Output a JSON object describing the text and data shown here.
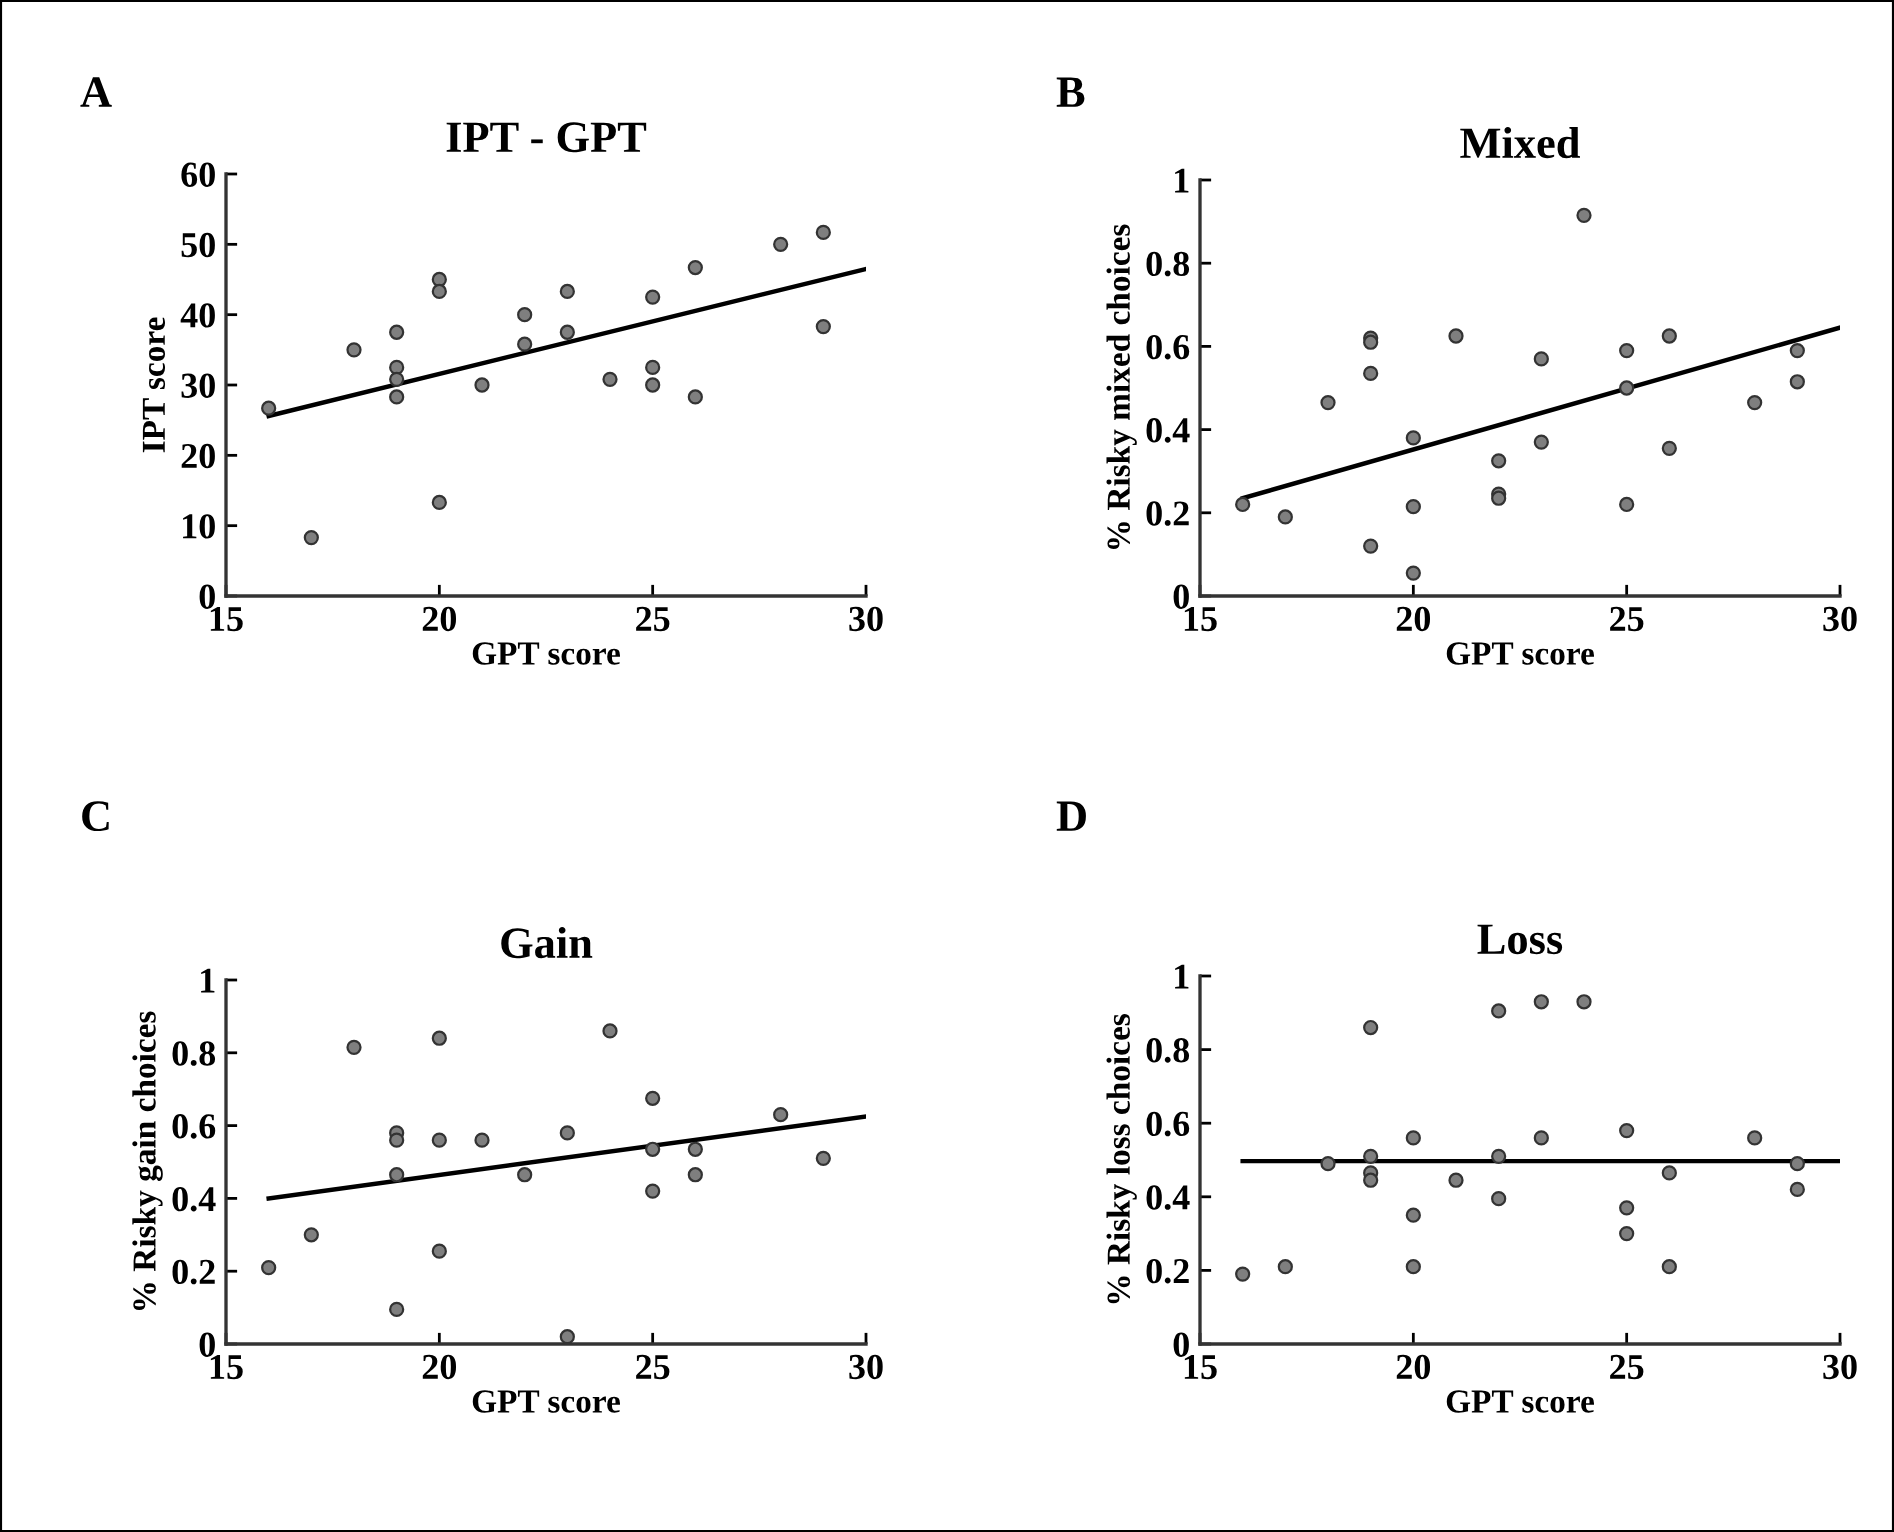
{
  "chart_data": [
    {
      "type": "scatter",
      "title": "IPT - GPT",
      "xlabel": "GPT score",
      "ylabel": "IPT score",
      "annotations": [
        "A"
      ],
      "xlim": [
        15,
        30
      ],
      "xticks": [
        15,
        20,
        25,
        30
      ],
      "ylim": [
        0,
        60
      ],
      "yticks": [
        0,
        10,
        20,
        30,
        40,
        50,
        60
      ],
      "grid": false,
      "series": [
        {
          "marker": "circle",
          "color": "#7f7f7f",
          "x": [
            16,
            17,
            18,
            19,
            19,
            19,
            19,
            20,
            20,
            20,
            21,
            22,
            22,
            23,
            23,
            24,
            25,
            25,
            25,
            26,
            26,
            28,
            29,
            29
          ],
          "values": [
            26.7,
            8.3,
            35,
            37.5,
            32.5,
            30.8,
            28.3,
            45,
            43.3,
            13.3,
            30,
            40,
            35.8,
            43.3,
            37.5,
            30.8,
            42.5,
            32.5,
            30,
            46.7,
            28.3,
            50,
            51.7,
            38.3
          ]
        },
        {
          "type": "line",
          "color": "#000000",
          "x": [
            16,
            30
          ],
          "values": [
            25.6,
            46.5
          ]
        }
      ]
    },
    {
      "type": "scatter",
      "title": "Mixed",
      "xlabel": "GPT score",
      "ylabel": "% Risky mixed choices",
      "annotations": [
        "B"
      ],
      "xlim": [
        15,
        30
      ],
      "xticks": [
        15,
        20,
        25,
        30
      ],
      "ylim": [
        0,
        1
      ],
      "yticks": [
        0,
        0.2,
        0.4,
        0.6,
        0.8,
        1
      ],
      "grid": false,
      "series": [
        {
          "marker": "circle",
          "color": "#7f7f7f",
          "x": [
            16,
            17,
            18,
            19,
            19,
            19,
            19,
            20,
            20,
            20,
            21,
            22,
            22,
            22,
            23,
            23,
            24,
            25,
            25,
            25,
            26,
            26,
            28,
            29,
            29
          ],
          "values": [
            0.22,
            0.19,
            0.465,
            0.62,
            0.61,
            0.535,
            0.12,
            0.38,
            0.215,
            0.055,
            0.625,
            0.325,
            0.245,
            0.235,
            0.57,
            0.37,
            0.915,
            0.59,
            0.5,
            0.22,
            0.625,
            0.355,
            0.465,
            0.59,
            0.515
          ]
        },
        {
          "type": "line",
          "color": "#000000",
          "x": [
            16,
            30
          ],
          "values": [
            0.235,
            0.645
          ]
        }
      ]
    },
    {
      "type": "scatter",
      "title": "Gain",
      "xlabel": "GPT score",
      "ylabel": "% Risky gain choices",
      "annotations": [
        "C"
      ],
      "xlim": [
        15,
        30
      ],
      "xticks": [
        15,
        20,
        25,
        30
      ],
      "ylim": [
        0,
        1
      ],
      "yticks": [
        0,
        0.2,
        0.4,
        0.6,
        0.8,
        1
      ],
      "grid": false,
      "series": [
        {
          "marker": "circle",
          "color": "#7f7f7f",
          "x": [
            16,
            17,
            18,
            19,
            19,
            19,
            19,
            20,
            20,
            20,
            21,
            22,
            23,
            23,
            24,
            25,
            25,
            25,
            26,
            26,
            28,
            29
          ],
          "values": [
            0.21,
            0.3,
            0.815,
            0.58,
            0.56,
            0.465,
            0.095,
            0.84,
            0.56,
            0.255,
            0.56,
            0.465,
            0.58,
            0.02,
            0.86,
            0.675,
            0.535,
            0.42,
            0.535,
            0.465,
            0.63,
            0.51
          ]
        },
        {
          "type": "line",
          "color": "#000000",
          "x": [
            16,
            30
          ],
          "values": [
            0.4,
            0.625
          ]
        }
      ]
    },
    {
      "type": "scatter",
      "title": "Loss",
      "xlabel": "GPT score",
      "ylabel": "% Risky loss choices",
      "annotations": [
        "D"
      ],
      "xlim": [
        15,
        30
      ],
      "xticks": [
        15,
        20,
        25,
        30
      ],
      "ylim": [
        0,
        1
      ],
      "yticks": [
        0,
        0.2,
        0.4,
        0.6,
        0.8,
        1
      ],
      "grid": false,
      "series": [
        {
          "marker": "circle",
          "color": "#7f7f7f",
          "x": [
            16,
            17,
            18,
            19,
            19,
            19,
            19,
            20,
            20,
            20,
            21,
            22,
            22,
            22,
            23,
            23,
            24,
            25,
            25,
            25,
            26,
            26,
            28,
            29,
            29
          ],
          "values": [
            0.19,
            0.21,
            0.49,
            0.86,
            0.51,
            0.465,
            0.445,
            0.56,
            0.35,
            0.21,
            0.445,
            0.905,
            0.51,
            0.395,
            0.93,
            0.56,
            0.93,
            0.58,
            0.37,
            0.3,
            0.465,
            0.21,
            0.56,
            0.49,
            0.42
          ]
        },
        {
          "type": "line",
          "color": "#000000",
          "x": [
            16,
            30
          ],
          "values": [
            0.497,
            0.497
          ]
        }
      ]
    }
  ]
}
